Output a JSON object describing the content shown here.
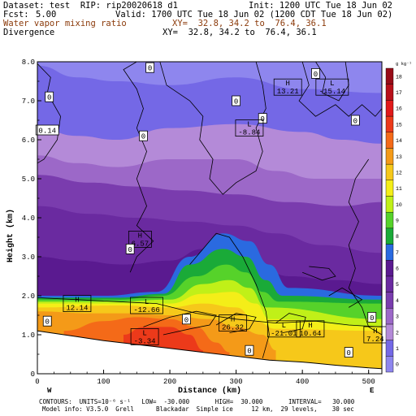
{
  "header": {
    "dataset": "Dataset: test  RIP: rip20020618 d1",
    "init": "Init: 1200 UTC Tue 18 Jun 02",
    "fcst_label": "Fcst:",
    "fcst_value": "5.00",
    "valid": "Valid: 1700 UTC Tue 18 Jun 02 (1200 CDT Tue 18 Jun 02)",
    "field1": "Water vapor mixing ratio",
    "field1_xy": "XY=  32.8, 34.2 to  76.4, 36.1",
    "field2": "Divergence",
    "field2_xy": "XY=  32.8, 34.2 to  76.4, 36.1"
  },
  "chart_data": {
    "type": "heatmap",
    "xlabel": "Distance (km)",
    "ylabel": "Height (km)",
    "xlim": [
      0,
      520
    ],
    "ylim": [
      0,
      8
    ],
    "x_ticks": [
      0,
      100,
      200,
      300,
      400,
      500
    ],
    "y_ticks": [
      "0",
      "1.0",
      "2.0",
      "3.0",
      "4.0",
      "5.0",
      "6.0",
      "7.0",
      "8.0"
    ],
    "y_tick_values": [
      0,
      1,
      2,
      3,
      4,
      5,
      6,
      7,
      8
    ],
    "x_end_labels": {
      "left": "W",
      "right": "E"
    },
    "grid": false,
    "colorbar": {
      "unit_label": "g kg⁻¹",
      "levels": [
        0,
        1,
        2,
        3,
        4,
        5,
        6,
        7,
        8,
        9,
        10,
        11,
        12,
        13,
        14,
        15,
        16,
        17,
        18
      ],
      "colors": [
        "#8e86ee",
        "#7468e6",
        "#b48ad8",
        "#9c68c8",
        "#7a3cae",
        "#6a2aa0",
        "#5a1a90",
        "#2a6ae0",
        "#1aaa38",
        "#56d22a",
        "#c0f018",
        "#f4ee18",
        "#f6c81a",
        "#f49a18",
        "#f46a18",
        "#ec3a1a",
        "#e01a1a",
        "#b8101a",
        "#980c18"
      ]
    },
    "mixing_ratio_bands": [
      {
        "level": 1,
        "tops": [
          [
            0,
            7.9
          ],
          [
            60,
            7.6
          ],
          [
            120,
            7.5
          ],
          [
            200,
            7.4
          ],
          [
            300,
            7.6
          ],
          [
            400,
            7.3
          ],
          [
            520,
            7.2
          ]
        ]
      },
      {
        "level": 2,
        "tops": [
          [
            0,
            6.3
          ],
          [
            60,
            6.1
          ],
          [
            120,
            6.0
          ],
          [
            200,
            6.3
          ],
          [
            300,
            6.4
          ],
          [
            400,
            6.2
          ],
          [
            460,
            6.0
          ],
          [
            520,
            5.9
          ]
        ]
      },
      {
        "level": 3,
        "tops": [
          [
            0,
            5.6
          ],
          [
            60,
            5.4
          ],
          [
            120,
            5.3
          ],
          [
            200,
            5.5
          ],
          [
            300,
            5.5
          ],
          [
            360,
            5.2
          ],
          [
            420,
            5.0
          ],
          [
            520,
            5.0
          ]
        ]
      },
      {
        "level": 4,
        "tops": [
          [
            0,
            5.1
          ],
          [
            80,
            4.9
          ],
          [
            150,
            4.8
          ],
          [
            220,
            4.7
          ],
          [
            300,
            4.6
          ],
          [
            380,
            4.4
          ],
          [
            460,
            4.3
          ],
          [
            520,
            4.4
          ]
        ]
      },
      {
        "level": 5,
        "tops": [
          [
            0,
            4.3
          ],
          [
            80,
            4.1
          ],
          [
            150,
            4.0
          ],
          [
            230,
            3.9
          ],
          [
            300,
            3.8
          ],
          [
            360,
            3.6
          ],
          [
            430,
            3.3
          ],
          [
            520,
            3.1
          ]
        ]
      },
      {
        "level": 6,
        "tops": [
          [
            0,
            3.0
          ],
          [
            60,
            2.9
          ],
          [
            130,
            2.8
          ],
          [
            200,
            2.9
          ],
          [
            250,
            3.2
          ],
          [
            290,
            3.1
          ],
          [
            330,
            2.8
          ],
          [
            380,
            2.5
          ],
          [
            450,
            2.4
          ],
          [
            520,
            2.3
          ]
        ]
      },
      {
        "level": 7,
        "tops": [
          [
            0,
            2.0
          ],
          [
            100,
            2.0
          ],
          [
            180,
            2.1
          ],
          [
            230,
            3.0
          ],
          [
            280,
            3.6
          ],
          [
            320,
            3.4
          ],
          [
            350,
            2.8
          ],
          [
            380,
            2.2
          ],
          [
            520,
            2.0
          ]
        ]
      },
      {
        "level": 8,
        "tops": [
          [
            0,
            1.95
          ],
          [
            120,
            1.95
          ],
          [
            190,
            2.05
          ],
          [
            230,
            2.8
          ],
          [
            280,
            3.2
          ],
          [
            315,
            3.0
          ],
          [
            345,
            2.4
          ],
          [
            370,
            2.0
          ],
          [
            520,
            1.9
          ]
        ]
      },
      {
        "level": 9,
        "tops": [
          [
            0,
            1.9
          ],
          [
            120,
            1.9
          ],
          [
            190,
            2.0
          ],
          [
            240,
            2.5
          ],
          [
            285,
            2.8
          ],
          [
            315,
            2.6
          ],
          [
            340,
            2.1
          ],
          [
            365,
            1.85
          ],
          [
            520,
            1.8
          ]
        ]
      },
      {
        "level": 10,
        "tops": [
          [
            0,
            1.85
          ],
          [
            120,
            1.85
          ],
          [
            200,
            1.9
          ],
          [
            250,
            2.3
          ],
          [
            290,
            2.4
          ],
          [
            320,
            2.2
          ],
          [
            345,
            1.7
          ],
          [
            520,
            1.4
          ]
        ]
      },
      {
        "level": 11,
        "tops": [
          [
            0,
            1.8
          ],
          [
            120,
            1.8
          ],
          [
            200,
            1.8
          ],
          [
            250,
            2.05
          ],
          [
            295,
            2.1
          ],
          [
            330,
            1.8
          ],
          [
            350,
            1.4
          ],
          [
            520,
            1.2
          ]
        ]
      },
      {
        "level": 12,
        "tops": [
          [
            0,
            1.7
          ],
          [
            120,
            1.75
          ],
          [
            200,
            1.7
          ],
          [
            250,
            1.8
          ],
          [
            300,
            1.7
          ],
          [
            330,
            1.35
          ],
          [
            360,
            1.15
          ],
          [
            520,
            1.1
          ]
        ]
      },
      {
        "level": 13,
        "tops": [
          [
            0,
            1.6
          ],
          [
            80,
            1.55
          ],
          [
            140,
            1.55
          ],
          [
            200,
            1.5
          ],
          [
            260,
            1.4
          ],
          [
            300,
            1.2
          ],
          [
            340,
            1.0
          ],
          [
            360,
            0.6
          ]
        ]
      },
      {
        "level": 14,
        "tops": [
          [
            40,
            1.1
          ],
          [
            100,
            1.35
          ],
          [
            150,
            1.45
          ],
          [
            200,
            1.4
          ],
          [
            240,
            1.2
          ],
          [
            270,
            0.8
          ],
          [
            290,
            0.55
          ]
        ]
      },
      {
        "level": 15,
        "tops": [
          [
            130,
            1.0
          ],
          [
            160,
            1.2
          ],
          [
            200,
            1.2
          ],
          [
            230,
            1.0
          ],
          [
            250,
            0.6
          ]
        ]
      }
    ],
    "terrain_height": [
      [
        0,
        1.1
      ],
      [
        60,
        0.95
      ],
      [
        100,
        0.85
      ],
      [
        150,
        0.75
      ],
      [
        200,
        0.65
      ],
      [
        250,
        0.55
      ],
      [
        300,
        0.45
      ],
      [
        350,
        0.35
      ],
      [
        400,
        0.3
      ],
      [
        450,
        0.22
      ],
      [
        500,
        0.15
      ],
      [
        520,
        0.13
      ]
    ],
    "annotations": [
      {
        "x": 15,
        "y": 6.25,
        "text": "0.14",
        "type": "box"
      },
      {
        "x": 18,
        "y": 7.1,
        "text": "0",
        "type": "box"
      },
      {
        "x": 160,
        "y": 6.1,
        "text": "0",
        "type": "box"
      },
      {
        "x": 170,
        "y": 7.85,
        "text": "0",
        "type": "box"
      },
      {
        "x": 300,
        "y": 7.0,
        "text": "0",
        "type": "box"
      },
      {
        "x": 420,
        "y": 7.7,
        "text": "0",
        "type": "box"
      },
      {
        "x": 340,
        "y": 6.55,
        "text": "0",
        "type": "box"
      },
      {
        "x": 480,
        "y": 6.5,
        "text": "0",
        "type": "box"
      },
      {
        "x": 378,
        "y": 7.35,
        "text": "H 13.21",
        "type": "hl"
      },
      {
        "x": 445,
        "y": 7.35,
        "text": "L -15.14",
        "type": "hl"
      },
      {
        "x": 320,
        "y": 6.3,
        "text": "L -8.84",
        "type": "hl"
      },
      {
        "x": 155,
        "y": 3.45,
        "text": "H 6.57",
        "type": "hl"
      },
      {
        "x": 140,
        "y": 3.2,
        "text": "0",
        "type": "box"
      },
      {
        "x": 60,
        "y": 1.8,
        "text": "H 12.14",
        "type": "hl"
      },
      {
        "x": 165,
        "y": 1.75,
        "text": "L -12.66",
        "type": "hl"
      },
      {
        "x": 15,
        "y": 1.35,
        "text": "0",
        "type": "box"
      },
      {
        "x": 225,
        "y": 1.4,
        "text": "0",
        "type": "box"
      },
      {
        "x": 295,
        "y": 1.3,
        "text": "H 26.32",
        "type": "hl"
      },
      {
        "x": 372,
        "y": 1.15,
        "text": "L -21.01",
        "type": "hl"
      },
      {
        "x": 412,
        "y": 1.15,
        "text": "H 10.64",
        "type": "hl"
      },
      {
        "x": 510,
        "y": 1.0,
        "text": "H 7.24",
        "type": "hl"
      },
      {
        "x": 162,
        "y": 0.95,
        "text": "L -3.34",
        "type": "hl"
      },
      {
        "x": 320,
        "y": 0.6,
        "text": "0",
        "type": "box"
      },
      {
        "x": 470,
        "y": 0.55,
        "text": "0",
        "type": "box"
      },
      {
        "x": 505,
        "y": 1.45,
        "text": "0",
        "type": "box"
      }
    ]
  },
  "footer": {
    "line1": "CONTOURS:  UNITS=10⁻⁶ s⁻¹   LOW=  -30.000       HIGH=  30.000       INTERVAL=   30.000",
    "line2": "Model info: V3.5.0  Grell      Blackadar  Simple ice     12 km,  29 levels,    30 sec"
  }
}
